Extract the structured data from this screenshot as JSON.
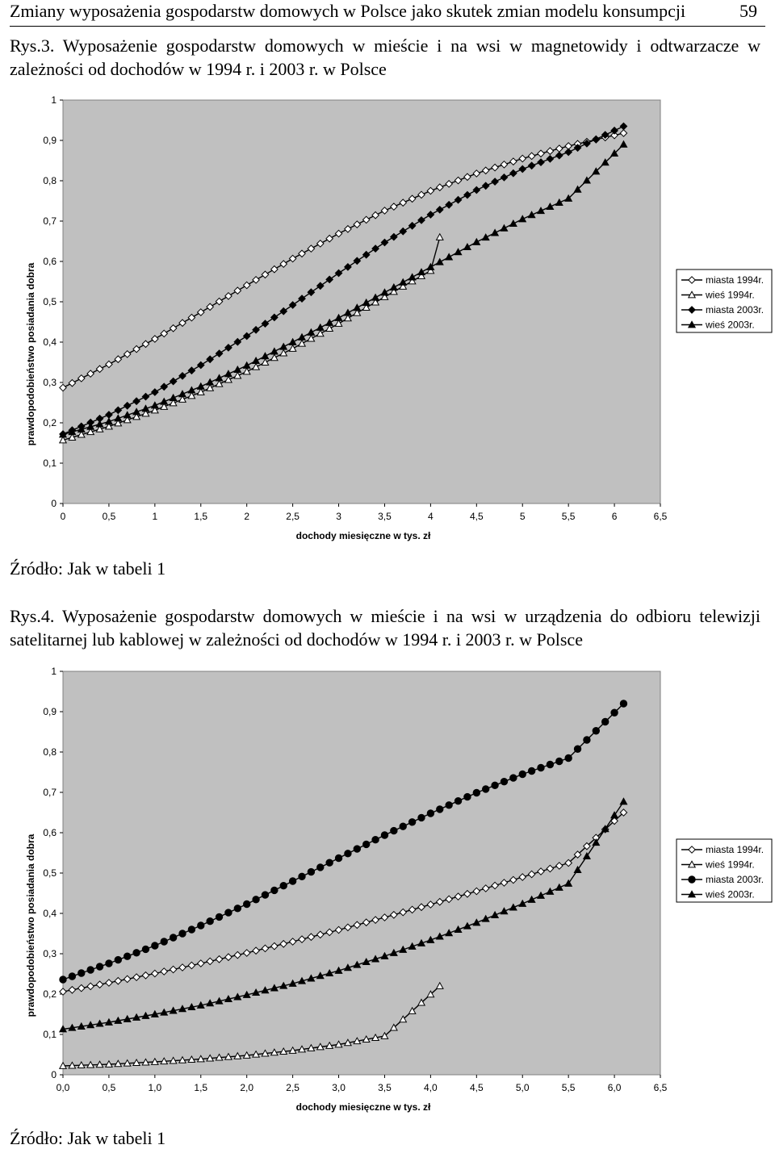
{
  "header": {
    "title": "Zmiany wyposażenia gospodarstw domowych w Polsce jako skutek zmian modelu konsumpcji",
    "page_number": "59"
  },
  "figures": [
    {
      "caption": "Rys.3. Wyposażenie gospodarstw domowych w mieście i na wsi w magnetowidy i odtwarzacze w zależności od dochodów w 1994 r. i 2003 r. w Polsce",
      "source": "Źródło: Jak w tabeli 1"
    },
    {
      "caption": "Rys.4. Wyposażenie gospodarstw domowych w mieście i na wsi w urządzenia do odbioru telewizji satelitarnej lub kablowej w zależności od dochodów w 1994 r. i 2003 r. w Polsce",
      "source": "Źródło: Jak w tabeli 1"
    }
  ],
  "chart_data": [
    {
      "type": "line",
      "ylabel": "prawdopodobieństwo posiadania dobra",
      "xlabel": "dochody miesięczne w tys. zł",
      "xlim": [
        0,
        6.5
      ],
      "ylim": [
        0,
        1
      ],
      "xticks": [
        "0",
        "0,5",
        "1",
        "1,5",
        "2",
        "2,5",
        "3",
        "3,5",
        "4",
        "4,5",
        "5",
        "5,5",
        "6",
        "6,5"
      ],
      "yticks": [
        "0",
        "0,1",
        "0,2",
        "0,3",
        "0,4",
        "0,5",
        "0,6",
        "0,7",
        "0,8",
        "0,9",
        "1"
      ],
      "legend": [
        "miasta 1994r.",
        "wieś 1994r.",
        "miasta 2003r.",
        "wieś 2003r."
      ],
      "series": [
        {
          "name": "miasta 1994r.",
          "marker": "diamond-open",
          "x_range": [
            0,
            6.1
          ],
          "points": [
            [
              0,
              0.287
            ],
            [
              0.5,
              0.345
            ],
            [
              1,
              0.408
            ],
            [
              1.5,
              0.474
            ],
            [
              2,
              0.541
            ],
            [
              2.5,
              0.607
            ],
            [
              3,
              0.669
            ],
            [
              3.5,
              0.726
            ],
            [
              4,
              0.775
            ],
            [
              4.5,
              0.818
            ],
            [
              5,
              0.855
            ],
            [
              5.5,
              0.886
            ],
            [
              6.1,
              0.918
            ]
          ]
        },
        {
          "name": "wieś 1994r.",
          "marker": "triangle-open",
          "x_range": [
            0,
            4.1
          ],
          "points": [
            [
              0,
              0.157
            ],
            [
              0.5,
              0.191
            ],
            [
              1,
              0.231
            ],
            [
              1.5,
              0.276
            ],
            [
              2,
              0.327
            ],
            [
              2.5,
              0.384
            ],
            [
              3,
              0.446
            ],
            [
              3.5,
              0.512
            ],
            [
              4.1,
              0.59
            ],
            [
              4.1,
              0.66
            ]
          ]
        },
        {
          "name": "miasta 2003r.",
          "marker": "diamond-filled",
          "x_range": [
            0,
            6.1
          ],
          "points": [
            [
              0,
              0.172
            ],
            [
              0.5,
              0.22
            ],
            [
              1,
              0.276
            ],
            [
              1.5,
              0.343
            ],
            [
              2,
              0.415
            ],
            [
              2.5,
              0.492
            ],
            [
              3,
              0.571
            ],
            [
              3.5,
              0.647
            ],
            [
              4,
              0.716
            ],
            [
              4.5,
              0.777
            ],
            [
              5,
              0.829
            ],
            [
              5.5,
              0.871
            ],
            [
              6.1,
              0.935
            ]
          ]
        },
        {
          "name": "wieś 2003r.",
          "marker": "triangle-filled",
          "x_range": [
            0,
            6.1
          ],
          "points": [
            [
              0,
              0.171
            ],
            [
              0.5,
              0.203
            ],
            [
              1,
              0.243
            ],
            [
              1.5,
              0.29
            ],
            [
              2,
              0.342
            ],
            [
              2.5,
              0.4
            ],
            [
              3,
              0.46
            ],
            [
              3.5,
              0.523
            ],
            [
              4,
              0.586
            ],
            [
              4.5,
              0.648
            ],
            [
              5,
              0.705
            ],
            [
              5.5,
              0.756
            ],
            [
              6.1,
              0.89
            ]
          ]
        }
      ]
    },
    {
      "type": "line",
      "ylabel": "prawdopodobieństwo posiadania dobra",
      "xlabel": "dochody miesięczne w tys. zł",
      "xlim": [
        0,
        6.5
      ],
      "ylim": [
        0,
        1
      ],
      "xticks": [
        "0,0",
        "0,5",
        "1,0",
        "1,5",
        "2,0",
        "2,5",
        "3,0",
        "3,5",
        "4,0",
        "4,5",
        "5,0",
        "5,5",
        "6,0",
        "6,5"
      ],
      "yticks": [
        "0",
        "0,1",
        "0,2",
        "0,3",
        "0,4",
        "0,5",
        "0,6",
        "0,7",
        "0,8",
        "0,9",
        "1"
      ],
      "legend": [
        "miasta 1994r.",
        "wieś 1994r.",
        "miasta 2003r.",
        "wieś 2003r."
      ],
      "series": [
        {
          "name": "miasta 1994r.",
          "marker": "diamond-open",
          "x_range": [
            0,
            6.1
          ],
          "points": [
            [
              0,
              0.206
            ],
            [
              0.5,
              0.228
            ],
            [
              1,
              0.251
            ],
            [
              1.5,
              0.276
            ],
            [
              2,
              0.302
            ],
            [
              2.5,
              0.33
            ],
            [
              3,
              0.359
            ],
            [
              3.5,
              0.39
            ],
            [
              4,
              0.422
            ],
            [
              4.5,
              0.455
            ],
            [
              5,
              0.49
            ],
            [
              5.5,
              0.525
            ],
            [
              6.1,
              0.65
            ]
          ]
        },
        {
          "name": "wieś 1994r.",
          "marker": "triangle-open",
          "x_range": [
            0,
            4.1
          ],
          "points": [
            [
              0,
              0.022
            ],
            [
              0.5,
              0.026
            ],
            [
              1,
              0.032
            ],
            [
              1.5,
              0.039
            ],
            [
              2,
              0.048
            ],
            [
              2.5,
              0.06
            ],
            [
              3,
              0.075
            ],
            [
              3.5,
              0.096
            ],
            [
              4.1,
              0.22
            ]
          ]
        },
        {
          "name": "miasta 2003r.",
          "marker": "circle-filled",
          "x_range": [
            0,
            6.1
          ],
          "points": [
            [
              0,
              0.236
            ],
            [
              0.5,
              0.276
            ],
            [
              1,
              0.32
            ],
            [
              1.5,
              0.37
            ],
            [
              2,
              0.423
            ],
            [
              2.5,
              0.48
            ],
            [
              3,
              0.537
            ],
            [
              3.5,
              0.594
            ],
            [
              4,
              0.648
            ],
            [
              4.5,
              0.699
            ],
            [
              5,
              0.745
            ],
            [
              5.5,
              0.785
            ],
            [
              6.1,
              0.92
            ]
          ]
        },
        {
          "name": "wieś 2003r.",
          "marker": "triangle-filled",
          "x_range": [
            0,
            6.1
          ],
          "points": [
            [
              0,
              0.113
            ],
            [
              0.5,
              0.13
            ],
            [
              1,
              0.15
            ],
            [
              1.5,
              0.172
            ],
            [
              2,
              0.198
            ],
            [
              2.5,
              0.226
            ],
            [
              3,
              0.258
            ],
            [
              3.5,
              0.294
            ],
            [
              4,
              0.334
            ],
            [
              4.5,
              0.377
            ],
            [
              5,
              0.424
            ],
            [
              5.5,
              0.474
            ],
            [
              6.1,
              0.677
            ]
          ]
        }
      ]
    }
  ]
}
